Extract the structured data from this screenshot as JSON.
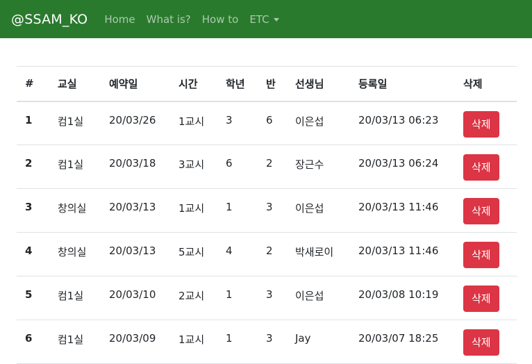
{
  "navbar": {
    "brand": "@SSAM_KO",
    "links": [
      "Home",
      "What is?",
      "How to",
      "ETC"
    ]
  },
  "table": {
    "headers": [
      "#",
      "교실",
      "예약일",
      "시간",
      "학년",
      "반",
      "선생님",
      "등록일",
      "삭제"
    ],
    "rows": [
      {
        "no": "1",
        "room": "컴1실",
        "date": "20/03/26",
        "period": "1교시",
        "grade": "3",
        "class": "6",
        "teacher": "이은섭",
        "registered": "20/03/13 06:23",
        "action": "삭제"
      },
      {
        "no": "2",
        "room": "컴1실",
        "date": "20/03/18",
        "period": "3교시",
        "grade": "6",
        "class": "2",
        "teacher": "장근수",
        "registered": "20/03/13 06:24",
        "action": "삭제"
      },
      {
        "no": "3",
        "room": "창의실",
        "date": "20/03/13",
        "period": "1교시",
        "grade": "1",
        "class": "3",
        "teacher": "이은섭",
        "registered": "20/03/13 11:46",
        "action": "삭제"
      },
      {
        "no": "4",
        "room": "창의실",
        "date": "20/03/13",
        "period": "5교시",
        "grade": "4",
        "class": "2",
        "teacher": "박새로이",
        "registered": "20/03/13 11:46",
        "action": "삭제"
      },
      {
        "no": "5",
        "room": "컴1실",
        "date": "20/03/10",
        "period": "2교시",
        "grade": "1",
        "class": "3",
        "teacher": "이은섭",
        "registered": "20/03/08 10:19",
        "action": "삭제"
      },
      {
        "no": "6",
        "room": "컴1실",
        "date": "20/03/09",
        "period": "1교시",
        "grade": "1",
        "class": "3",
        "teacher": "Jay",
        "registered": "20/03/07 18:25",
        "action": "삭제"
      }
    ]
  },
  "colors": {
    "navbar": "#2a7a2e",
    "danger": "#dc3545"
  }
}
